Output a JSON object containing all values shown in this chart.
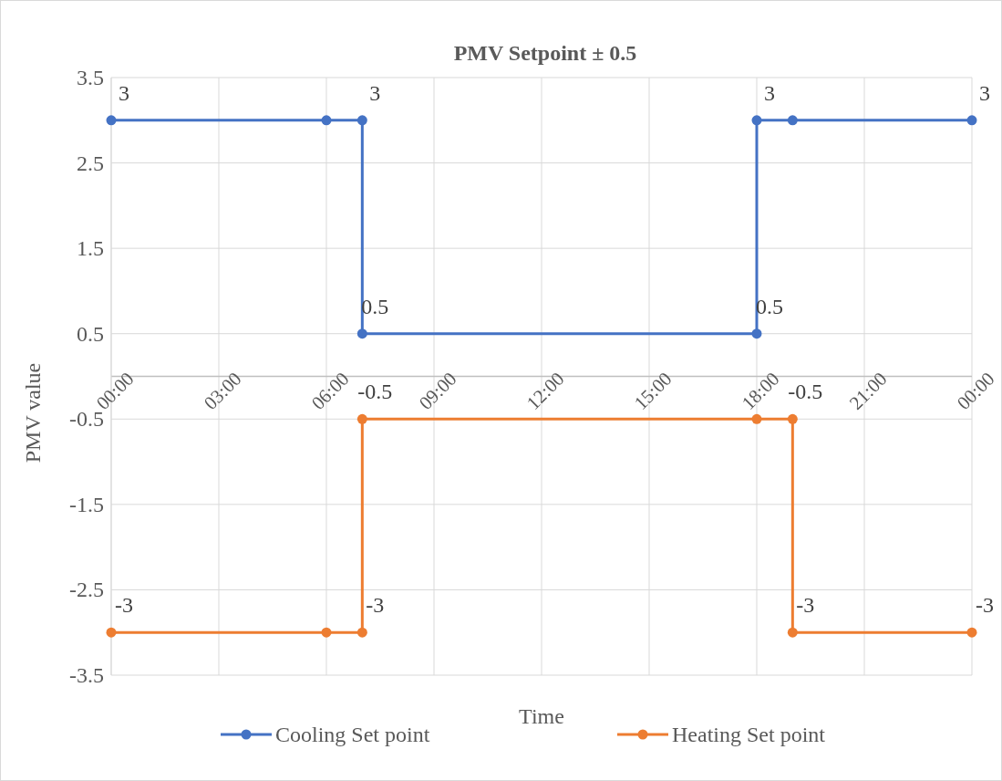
{
  "chart_data": {
    "type": "line",
    "title": "PMV Setpoint ± 0.5",
    "xlabel": "Time",
    "ylabel": "PMV value",
    "xlim": [
      0,
      24
    ],
    "xticks": [
      {
        "value": 0,
        "label": "00:00"
      },
      {
        "value": 3,
        "label": "03:00"
      },
      {
        "value": 6,
        "label": "06:00"
      },
      {
        "value": 9,
        "label": "09:00"
      },
      {
        "value": 12,
        "label": "12:00"
      },
      {
        "value": 15,
        "label": "15:00"
      },
      {
        "value": 18,
        "label": "18:00"
      },
      {
        "value": 21,
        "label": "21:00"
      },
      {
        "value": 24,
        "label": "00:00"
      }
    ],
    "ylim": [
      -3.5,
      3.5
    ],
    "yticks": [
      -3.5,
      -2.5,
      -1.5,
      -0.5,
      0.5,
      1.5,
      2.5,
      3.5
    ],
    "grid": true,
    "legend": "bottom",
    "marker": "circle",
    "line_style": "solid",
    "series": [
      {
        "name": "Cooling Set point",
        "color": "#4472c4",
        "x": [
          0,
          6,
          7,
          7,
          18,
          18,
          19,
          24
        ],
        "values": [
          3,
          3,
          3,
          0.5,
          0.5,
          3,
          3,
          3
        ],
        "value_labels": [
          "3",
          null,
          "3",
          "0.5",
          "0.5",
          "3",
          null,
          "3"
        ]
      },
      {
        "name": "Heating Set point",
        "color": "#ed7d31",
        "x": [
          0,
          6,
          7,
          7,
          18,
          19,
          19,
          24
        ],
        "values": [
          -3,
          -3,
          -3,
          -0.5,
          -0.5,
          -0.5,
          -3,
          -3
        ],
        "value_labels": [
          "-3",
          null,
          "-3",
          "-0.5",
          null,
          "-0.5",
          "-3",
          "-3"
        ]
      }
    ]
  }
}
